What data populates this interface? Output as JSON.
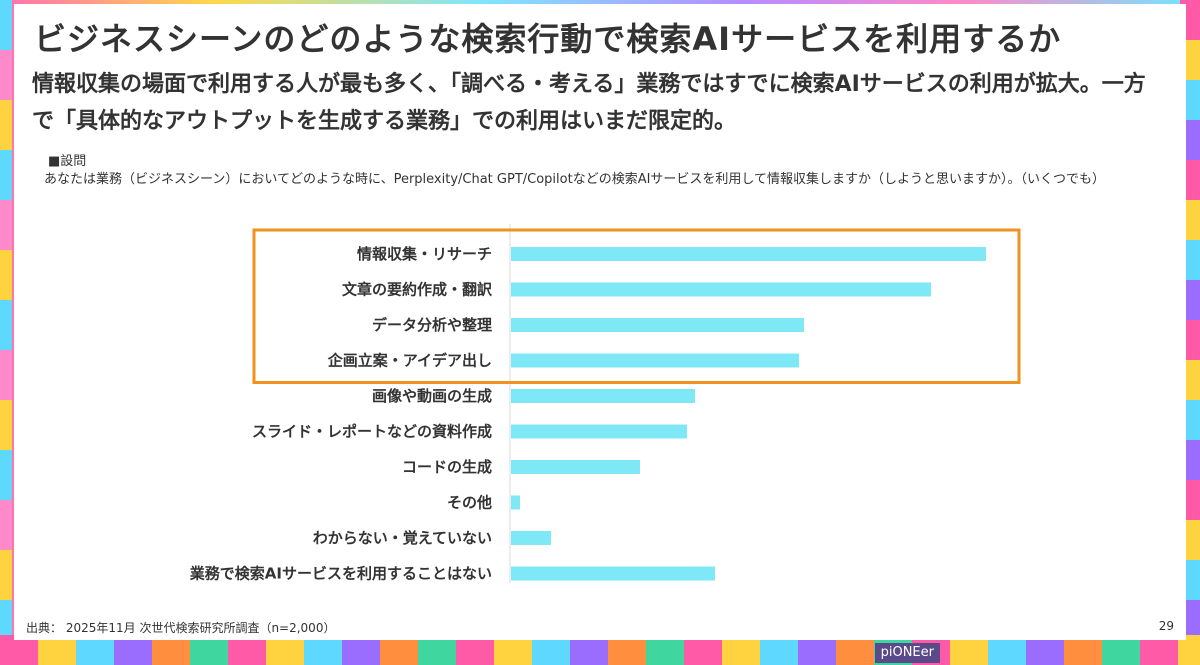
{
  "title": "ビジネスシーンのどのような検索行動で検索AIサービスを利用するか",
  "subtitle": "情報収集の場面で利用する人が最も多く、「調べる・考える」業務ではすでに検索AIサービスの利用が拡大。一方で「具体的なアウトプットを生成する業務」での利用はいまだ限定的。",
  "question_heading": "■設問",
  "question_text": "あなたは業務（ビジネスシーン）においてどのような時に、Perplexity/Chat GPT/Copilotなどの検索AIサービスを利用して情報収集しますか（しようと思いますか）。（いくつでも）",
  "source": "出典： 2025年11月 次世代検索研究所調査（n=2,000）",
  "page_number": "29",
  "corner_label": "piONEer",
  "colors": {
    "bar": "#7ee8f6",
    "highlight_border": "#f0921e",
    "axis": "#d9d9d9",
    "text": "#333333"
  },
  "chart_data": {
    "type": "bar",
    "orientation": "horizontal",
    "categories": [
      "情報収集・リサーチ",
      "文章の要約作成・翻訳",
      "データ分析や整理",
      "企画立案・アイデア出し",
      "画像や動画の生成",
      "スライド・レポートなどの資料作成",
      "コードの生成",
      "その他",
      "わからない・覚えていない",
      "業務で検索AIサービスを利用することはない"
    ],
    "values": [
      47.5,
      42.0,
      29.3,
      28.8,
      18.4,
      17.6,
      12.9,
      0.9,
      4.0,
      20.4
    ],
    "xlim": [
      0,
      50
    ],
    "highlighted": [
      0,
      1,
      2,
      3
    ],
    "grid": false,
    "legend": "none"
  }
}
